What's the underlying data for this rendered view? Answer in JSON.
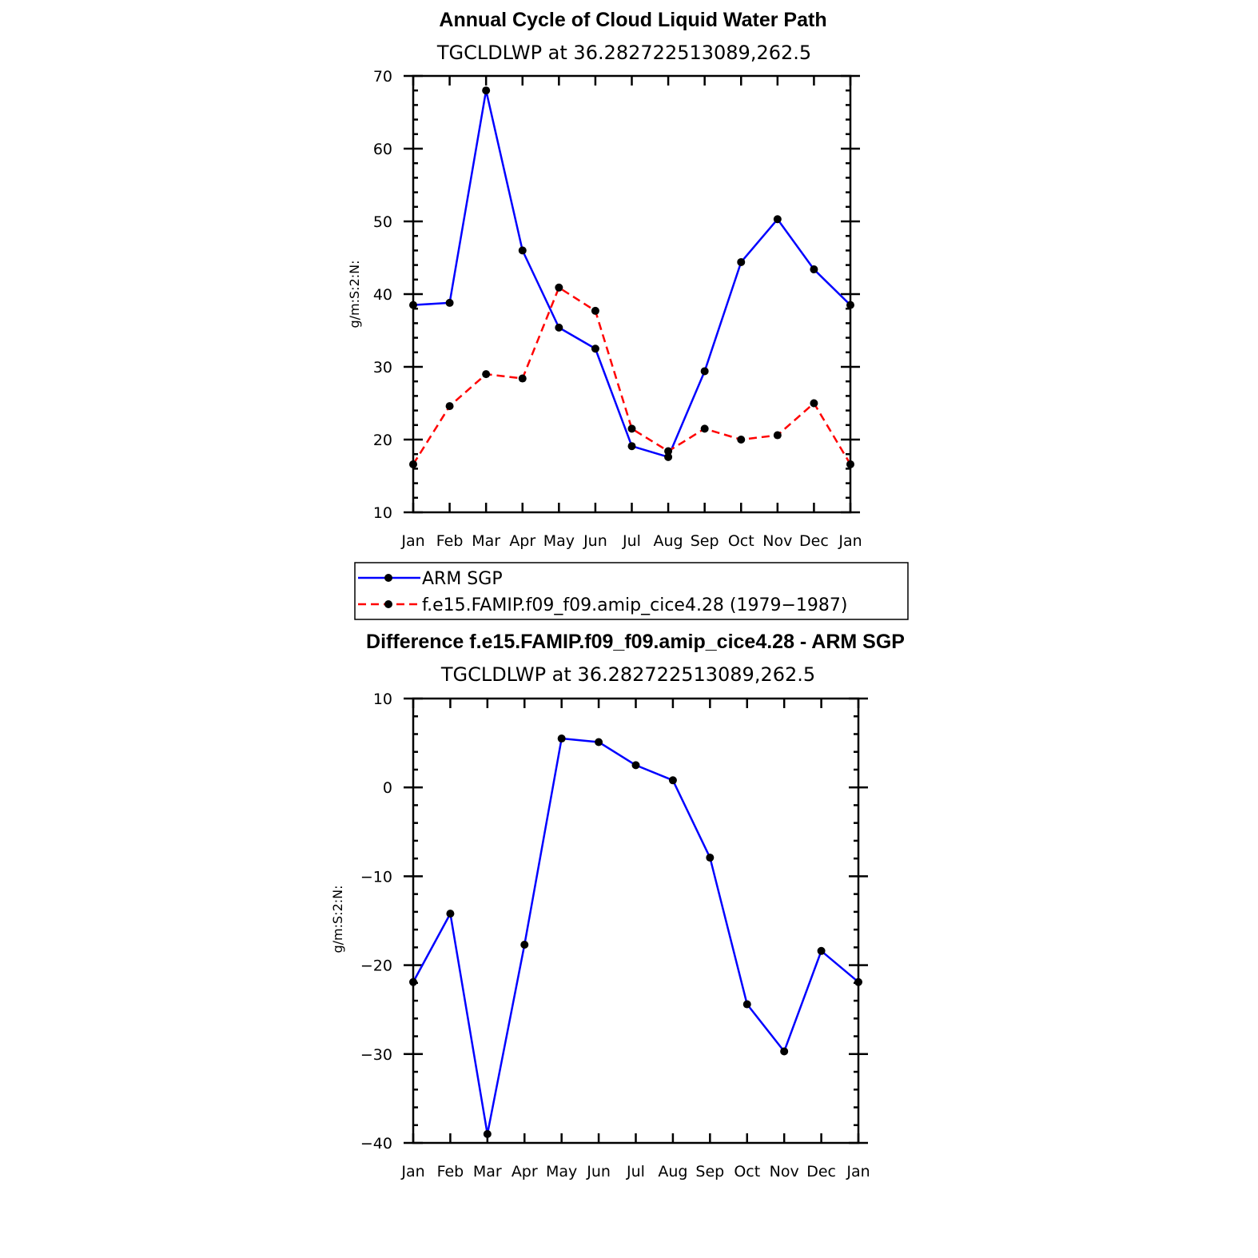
{
  "chart_data": [
    {
      "type": "line",
      "title": "Annual Cycle of Cloud Liquid Water Path",
      "subtitle": "TGCLDLWP  at  36.282722513089,262.5",
      "ylabel": "g/m:S:2:N:",
      "xlabel": "",
      "ylim": [
        10,
        70
      ],
      "yticks": [
        10,
        20,
        30,
        40,
        50,
        60,
        70
      ],
      "categories": [
        "Jan",
        "Feb",
        "Mar",
        "Apr",
        "May",
        "Jun",
        "Jul",
        "Aug",
        "Sep",
        "Oct",
        "Nov",
        "Dec",
        "Jan"
      ],
      "grid": false,
      "series": [
        {
          "name": "ARM  SGP",
          "color": "#0000ff",
          "dash": "solid",
          "values": [
            38.5,
            38.8,
            68.0,
            46.0,
            35.4,
            32.5,
            19.1,
            17.6,
            29.4,
            44.4,
            50.3,
            43.4,
            38.5
          ]
        },
        {
          "name": "f.e15.FAMIP.f09_f09.amip_cice4.28  (1979−1987)",
          "color": "#ff0000",
          "dash": "dashed",
          "values": [
            16.6,
            24.6,
            29.0,
            28.4,
            40.9,
            37.7,
            21.5,
            18.4,
            21.5,
            20.0,
            20.6,
            25.0,
            16.6
          ]
        }
      ],
      "legend": {
        "placement": "below"
      }
    },
    {
      "type": "line",
      "title": "Difference f.e15.FAMIP.f09_f09.amip_cice4.28 - ARM SGP",
      "subtitle": "TGCLDLWP  at  36.282722513089,262.5",
      "ylabel": "g/m:S:2:N:",
      "xlabel": "",
      "ylim": [
        -40,
        10
      ],
      "yticks": [
        -40,
        -30,
        -20,
        -10,
        0,
        10
      ],
      "yticklabels": [
        "−40",
        "−30",
        "−20",
        "−10",
        "0",
        "10"
      ],
      "categories": [
        "Jan",
        "Feb",
        "Mar",
        "Apr",
        "May",
        "Jun",
        "Jul",
        "Aug",
        "Sep",
        "Oct",
        "Nov",
        "Dec",
        "Jan"
      ],
      "grid": false,
      "series": [
        {
          "color": "#0000ff",
          "dash": "solid",
          "values": [
            -21.9,
            -14.2,
            -39.0,
            -17.7,
            5.5,
            5.1,
            2.5,
            0.8,
            -7.9,
            -24.4,
            -29.7,
            -18.4,
            -21.9
          ]
        }
      ]
    }
  ]
}
